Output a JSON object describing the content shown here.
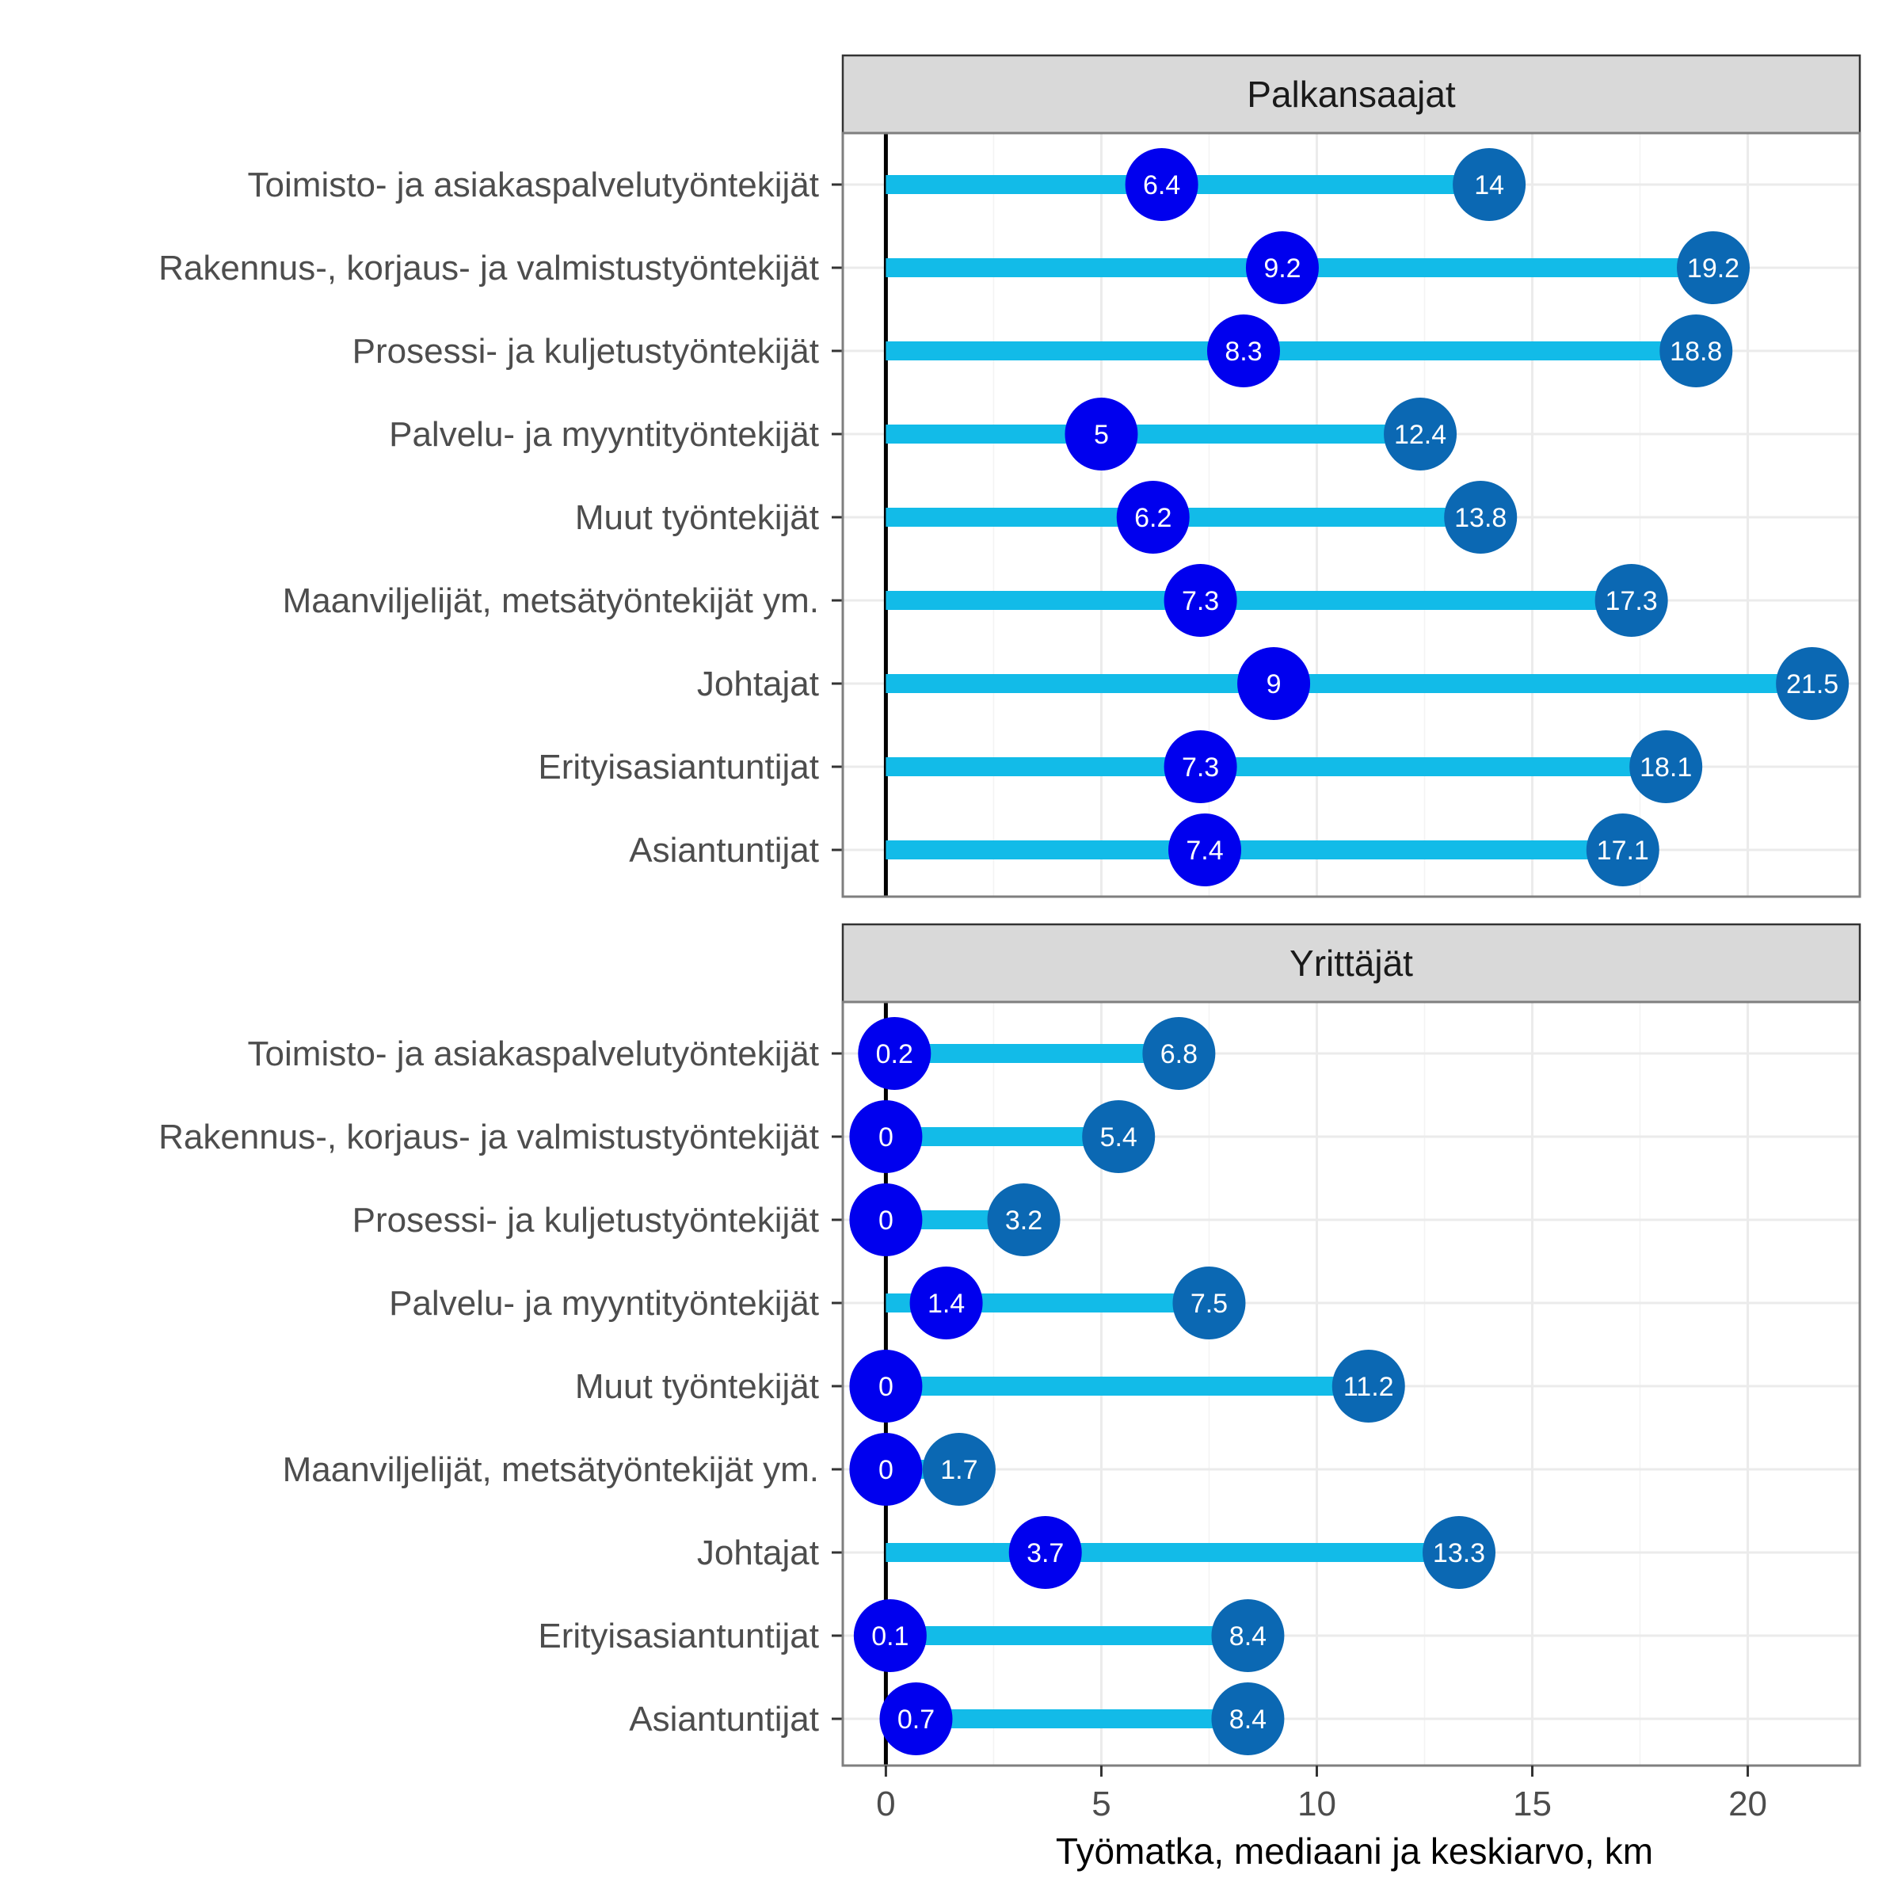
{
  "chart_data": {
    "type": "dumbbell",
    "xlabel": "Työmatka, mediaani ja keskiarvo, km",
    "xlim": [
      -1,
      22.6
    ],
    "x_ticks": [
      0,
      5,
      10,
      15,
      20
    ],
    "colors": {
      "segment": "#12bbe8",
      "median": "#0000ee",
      "mean": "#0b68b3",
      "strip": "#d9d9d9",
      "grid": "#ebebeb",
      "zero_line": "#000000",
      "panel_border": "#7f7f7f"
    },
    "categories": [
      "Toimisto- ja asiakaspalvelutyöntekijät",
      "Rakennus-, korjaus- ja valmistustyöntekijät",
      "Prosessi- ja kuljetustyöntekijät",
      "Palvelu- ja myyntityöntekijät",
      "Muut työntekijät",
      "Maanviljelijät, metsätyöntekijät ym.",
      "Johtajat",
      "Erityisasiantuntijat",
      "Asiantuntijat"
    ],
    "panels": [
      {
        "name": "Palkansaajat",
        "median": [
          6.4,
          9.2,
          8.3,
          5,
          6.2,
          7.3,
          9,
          7.3,
          7.4
        ],
        "mean": [
          14,
          19.2,
          18.8,
          12.4,
          13.8,
          17.3,
          21.5,
          18.1,
          17.1
        ],
        "median_labels": [
          "6.4",
          "9.2",
          "8.3",
          "5",
          "6.2",
          "7.3",
          "9",
          "7.3",
          "7.4"
        ],
        "mean_labels": [
          "14",
          "19.2",
          "18.8",
          "12.4",
          "13.8",
          "17.3",
          "21.5",
          "18.1",
          "17.1"
        ]
      },
      {
        "name": "Yrittäjät",
        "median": [
          0.2,
          0,
          0,
          1.4,
          0,
          0,
          3.7,
          0.1,
          0.7
        ],
        "mean": [
          6.8,
          5.4,
          3.2,
          7.5,
          11.2,
          1.7,
          13.3,
          8.4,
          8.4
        ],
        "median_labels": [
          "0.2",
          "0",
          "0",
          "1.4",
          "0",
          "0",
          "3.7",
          "0.1",
          "0.7"
        ],
        "mean_labels": [
          "6.8",
          "5.4",
          "3.2",
          "7.5",
          "11.2",
          "1.7",
          "13.3",
          "8.4",
          "8.4"
        ]
      }
    ]
  }
}
